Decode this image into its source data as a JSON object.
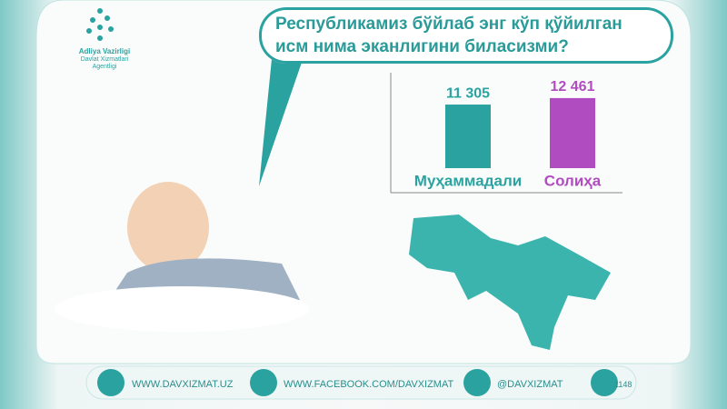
{
  "logo": {
    "line1": "Adliya Vazirligi",
    "line2": "Davlat Xizmatlari",
    "line3": "Agentligi"
  },
  "chart_data": {
    "type": "bar",
    "title": "Республикамиз бўйлаб энг кўп қўйилган исм нима эканлигини биласизми?",
    "categories": [
      "Муҳаммадали",
      "Солиҳа"
    ],
    "values": [
      11305,
      12461
    ],
    "value_labels": [
      "11 305",
      "12 461"
    ],
    "colors": [
      "#2aa3a0",
      "#b04cc0"
    ],
    "ylim": [
      0,
      16000
    ]
  },
  "footer": {
    "website": "WWW.DAVXIZMAT.UZ",
    "facebook": "WWW.FACEBOOK.COM/DAVXIZMAT",
    "telegram": "@DAVXIZMAT",
    "phone": "1148"
  }
}
